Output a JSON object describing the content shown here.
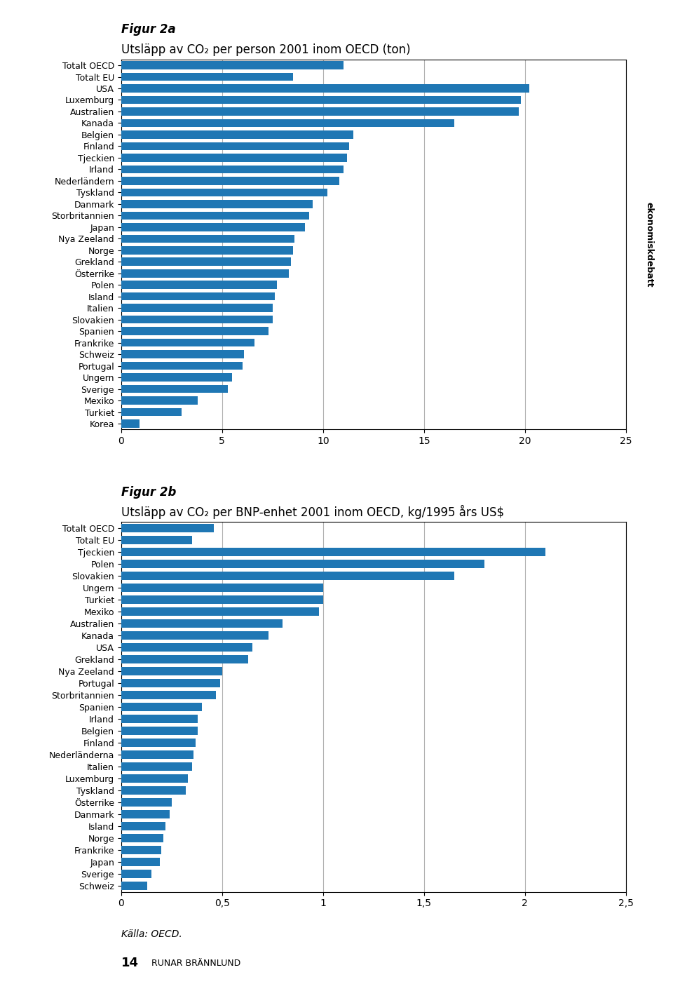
{
  "chart_data": [
    {
      "type": "bar",
      "orientation": "horizontal",
      "grid": true,
      "title": "Figur 2a",
      "subtitle": "Utsläpp av CO₂ per person 2001 inom OECD (ton)",
      "categories": [
        "Totalt OECD",
        "Totalt EU",
        "USA",
        "Luxemburg",
        "Australien",
        "Kanada",
        "Belgien",
        "Finland",
        "Tjeckien",
        "Irland",
        "Nederländern",
        "Tyskland",
        "Danmark",
        "Storbritannien",
        "Japan",
        "Nya Zeeland",
        "Norge",
        "Grekland",
        "Österrike",
        "Polen",
        "Island",
        "Italien",
        "Slovakien",
        "Spanien",
        "Frankrike",
        "Schweiz",
        "Portugal",
        "Ungern",
        "Sverige",
        "Mexiko",
        "Turkiet",
        "Korea"
      ],
      "values": [
        11.0,
        8.5,
        20.2,
        19.8,
        19.7,
        16.5,
        11.5,
        11.3,
        11.2,
        11.0,
        10.8,
        10.2,
        9.5,
        9.3,
        9.1,
        8.6,
        8.5,
        8.4,
        8.3,
        7.7,
        7.6,
        7.5,
        7.5,
        7.3,
        6.6,
        6.1,
        6.0,
        5.5,
        5.3,
        3.8,
        3.0,
        0.9
      ],
      "xlim": [
        0,
        25
      ],
      "xticks": [
        0,
        5,
        10,
        15,
        20,
        25
      ]
    },
    {
      "type": "bar",
      "orientation": "horizontal",
      "grid": true,
      "title": "Figur 2b",
      "subtitle": "Utsläpp av CO₂ per BNP-enhet 2001 inom OECD, kg/1995 års US$",
      "categories": [
        "Totalt OECD",
        "Totalt EU",
        "Tjeckien",
        "Polen",
        "Slovakien",
        "Ungern",
        "Turkiet",
        "Mexiko",
        "Australien",
        "Kanada",
        "USA",
        "Grekland",
        "Nya Zeeland",
        "Portugal",
        "Storbritannien",
        "Spanien",
        "Irland",
        "Belgien",
        "Finland",
        "Nederländerna",
        "Italien",
        "Luxemburg",
        "Tyskland",
        "Österrike",
        "Danmark",
        "Island",
        "Norge",
        "Frankrike",
        "Japan",
        "Sverige",
        "Schweiz"
      ],
      "values": [
        0.46,
        0.35,
        2.1,
        1.8,
        1.65,
        1.0,
        1.0,
        0.98,
        0.8,
        0.73,
        0.65,
        0.63,
        0.5,
        0.49,
        0.47,
        0.4,
        0.38,
        0.38,
        0.37,
        0.36,
        0.35,
        0.33,
        0.32,
        0.25,
        0.24,
        0.22,
        0.21,
        0.2,
        0.19,
        0.15,
        0.13
      ],
      "xlim": [
        0,
        2.5
      ],
      "xticks": [
        0,
        {
          "value": 0.5,
          "label": "0,5"
        },
        1,
        {
          "value": 1.5,
          "label": "1,5"
        },
        2,
        {
          "value": 2.5,
          "label": "2,5"
        }
      ],
      "annotations": [
        "Källa: OECD.",
        "14",
        "RUNAR BRÄNNLUND",
        "ekonomiskdebatt"
      ]
    }
  ]
}
